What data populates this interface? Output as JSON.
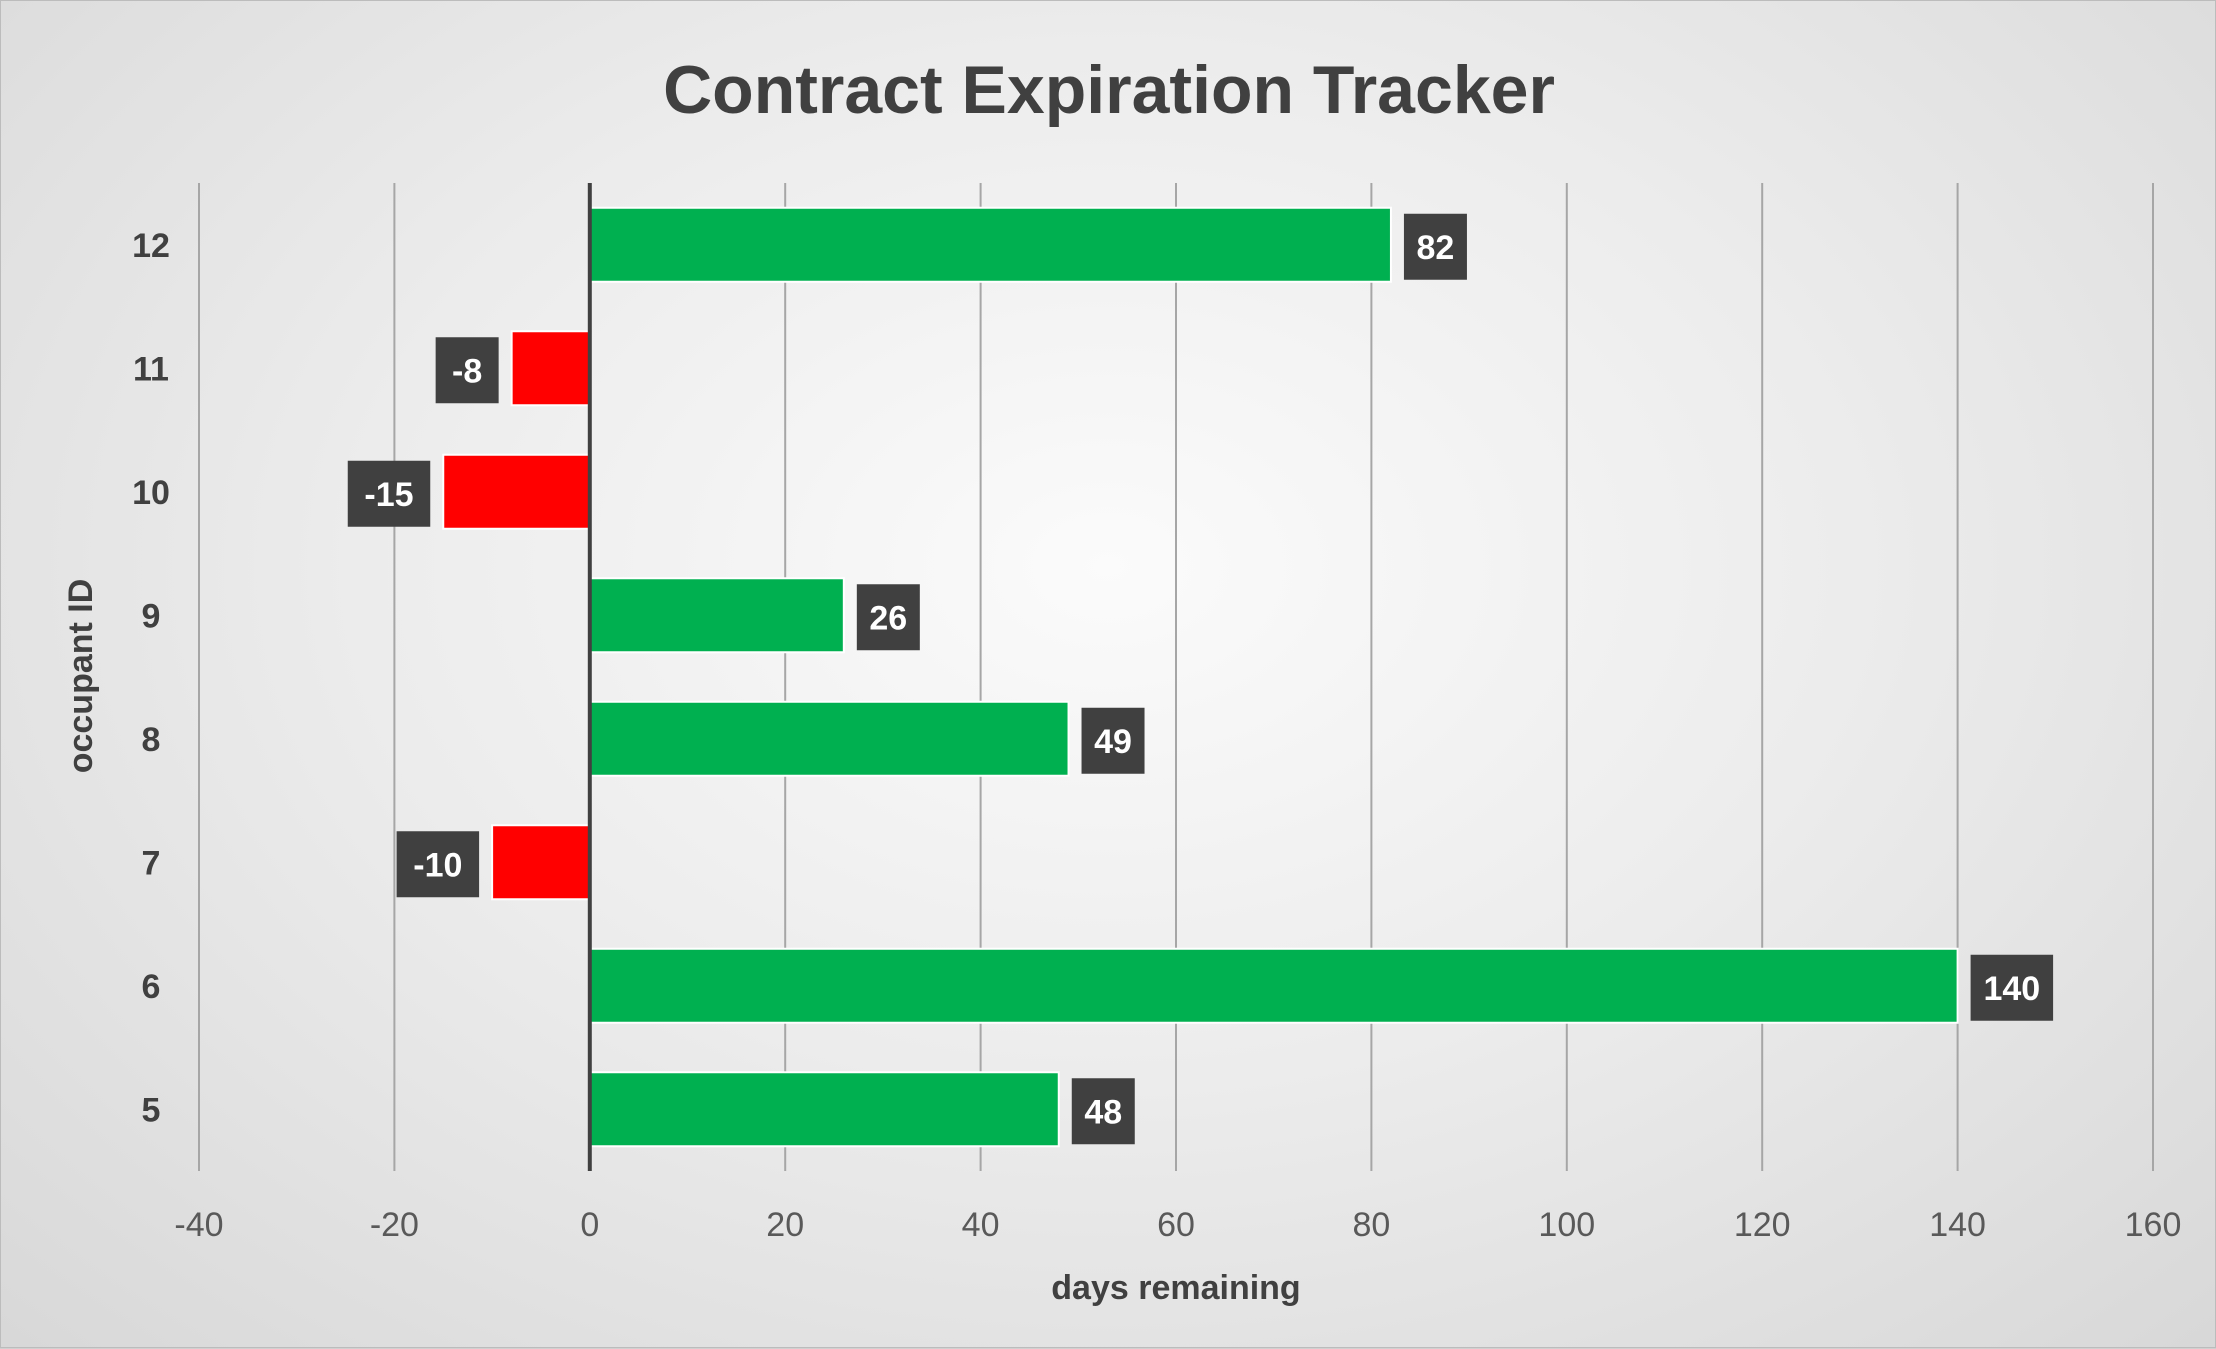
{
  "chart_data": {
    "type": "bar",
    "orientation": "horizontal",
    "title": "Contract Expiration Tracker",
    "xlabel": "days remaining",
    "ylabel": "occupant ID",
    "categories": [
      "12",
      "11",
      "10",
      "9",
      "8",
      "7",
      "6",
      "5"
    ],
    "values": [
      82,
      -8,
      -15,
      26,
      49,
      -10,
      140,
      48
    ],
    "xlim": [
      -40,
      160
    ],
    "xticks": [
      "-40",
      "-20",
      "0",
      "20",
      "40",
      "60",
      "80",
      "100",
      "120",
      "140",
      "160"
    ],
    "grid": "vertical",
    "legend": "none",
    "colors": {
      "positive": "#00b050",
      "negative": "#ff0000",
      "label_bg": "#404040",
      "label_text": "#ffffff",
      "zero_line": "#404040",
      "grid": "#a6a6a6"
    }
  }
}
